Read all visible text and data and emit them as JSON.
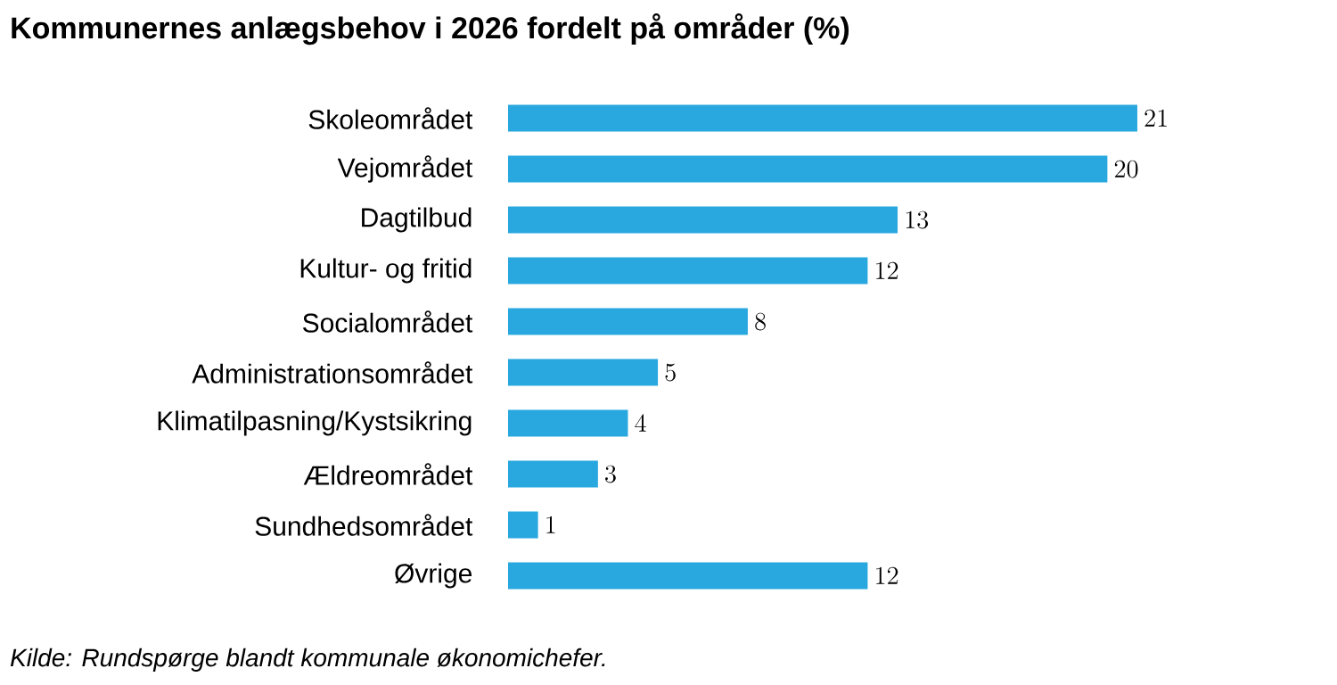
{
  "chart_data": {
    "type": "bar",
    "orientation": "horizontal",
    "title": "Kommunernes anlægsbehov i 2026 fordelt på områder (%)",
    "categories": [
      "Skoleområdet",
      "Vejområdet",
      "Dagtilbud",
      "Kultur- og fritid",
      "Socialområdet",
      "Administrationsområdet",
      "Klimatilpasning/Kystsikring",
      "Ældreområdet",
      "Sundhedsområdet",
      "Øvrige"
    ],
    "values": [
      21,
      20,
      13,
      12,
      8,
      5,
      4,
      3,
      1,
      12
    ],
    "color": "#29a8e0",
    "data_labels": true,
    "annotations": [
      "Kilde: Rundspørge blandt kommunale økonomichefer."
    ]
  }
}
